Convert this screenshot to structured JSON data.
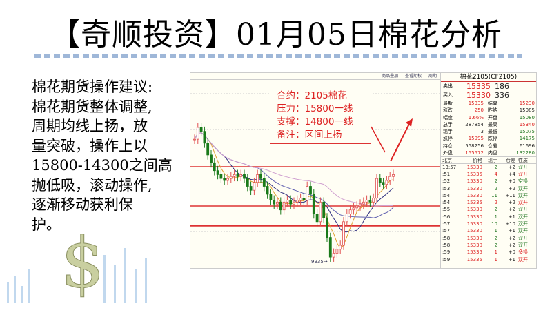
{
  "slide": {
    "title": "【奇顺投资】01月05日棉花分析",
    "advice": [
      "棉花期货操作建议:",
      "棉花期货整体调整,",
      "周期均线上扬，放",
      "量突破，操作上以",
      "15800-14300之间高",
      "抛低吸，滚动操作,",
      "逐渐移动获利保",
      "护。"
    ]
  },
  "chart": {
    "toolbar": [
      "商品叠加",
      "查看期权",
      "周期"
    ],
    "note": [
      "合约：2105棉花",
      "压力：15800一线",
      "支撑：14800一线",
      "备注：区间上扬"
    ],
    "low_label": "9935→"
  },
  "chart_data": {
    "type": "candlestick",
    "levels": [
      15800,
      14800,
      14300
    ],
    "closes": [
      16500,
      16800,
      16700,
      16400,
      16100,
      15900,
      15700,
      15600,
      15500,
      15450,
      15500,
      15550,
      15600,
      15550,
      15600,
      15500,
      15300,
      15200,
      15400,
      15600,
      15500,
      15300,
      15100,
      14950,
      14850,
      14900,
      14700,
      14900,
      14950,
      14850,
      14900,
      14950,
      15000,
      14950,
      15300,
      15100,
      14600,
      14400,
      14900,
      14500,
      14000,
      13500,
      13600,
      13700,
      13800,
      14400,
      14600,
      14700,
      14750,
      14800,
      14850,
      14900,
      14950,
      14900,
      15000,
      15500,
      15400,
      15350,
      15450,
      15550,
      15600
    ],
    "colors": {
      "up": "#e05050",
      "down": "#1a7a1a",
      "level": "#d33",
      "arrow": "#d22"
    }
  },
  "quote": {
    "title": "棉花2105(CF2105)",
    "ask": {
      "label": "卖出",
      "price": "15335",
      "vol": "186"
    },
    "bid": {
      "label": "买入",
      "price": "15330",
      "vol": "336"
    },
    "stats": [
      [
        "最新",
        "15335",
        "结算",
        "15230"
      ],
      [
        "涨跌",
        "250",
        "昨结",
        "15085"
      ],
      [
        "幅度",
        "1.66%",
        "开盘",
        "15080"
      ],
      [
        "总手",
        "287854",
        "最高",
        "15340"
      ],
      [
        "现手",
        "3",
        "最低",
        "15075"
      ],
      [
        "涨停",
        "15995",
        "跌停",
        "14175"
      ],
      [
        "持仓",
        "558256",
        "仓差",
        "61696"
      ],
      [
        "外盘",
        "155572",
        "内盘",
        "132280"
      ]
    ],
    "headers": [
      "北京",
      "价格",
      "现手",
      "仓差",
      "性质"
    ],
    "ticks": [
      [
        "13:57",
        "15330",
        "2",
        "+2",
        "双开"
      ],
      [
        ":51",
        "15335",
        "4",
        "+4",
        "双开"
      ],
      [
        ":52",
        "15330",
        "2",
        "+0",
        "空换"
      ],
      [
        ":53",
        "15330",
        "2",
        "+2",
        "双开"
      ],
      [
        ":54",
        "15330",
        "11",
        "+11",
        "双开"
      ],
      [
        ":54",
        "15335",
        "2",
        "+2",
        "双开"
      ],
      [
        ":55",
        "15330",
        "2",
        "+2",
        "双开"
      ],
      [
        ":56",
        "15330",
        "1",
        "+1",
        "双开"
      ],
      [
        ":57",
        "15330",
        "10",
        "+10",
        "双开"
      ],
      [
        ":57",
        "15330",
        "1",
        "+1",
        "双开"
      ],
      [
        ":58",
        "15330",
        "2",
        "+2",
        "双开"
      ],
      [
        ":58",
        "15330",
        "2",
        "+2",
        "双开"
      ],
      [
        ":59",
        "15335",
        "1",
        "+0",
        "多换"
      ],
      [
        ":59",
        "15335",
        "1",
        "+1",
        "双开"
      ]
    ]
  }
}
